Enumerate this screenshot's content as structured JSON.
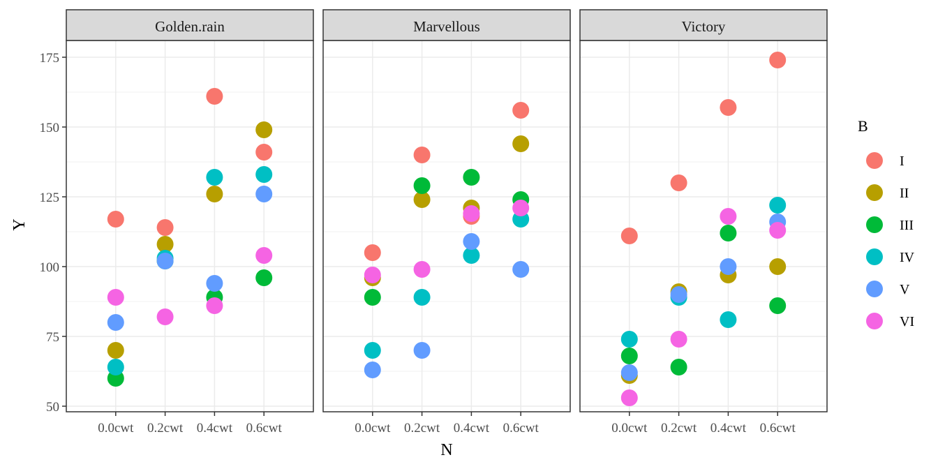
{
  "chart_data": {
    "type": "scatter",
    "xlabel": "N",
    "ylabel": "Y",
    "categories": [
      "0.0cwt",
      "0.2cwt",
      "0.4cwt",
      "0.6cwt"
    ],
    "ylim": [
      48,
      181
    ],
    "yticks": [
      50,
      75,
      100,
      125,
      150,
      175
    ],
    "grid": true,
    "facets": [
      "Golden.rain",
      "Marvellous",
      "Victory"
    ],
    "legend": {
      "title": "B",
      "position": "right",
      "entries": [
        "I",
        "II",
        "III",
        "IV",
        "V",
        "VI"
      ],
      "colors": [
        "#F8766D",
        "#B79F00",
        "#00BA38",
        "#00BFC4",
        "#619CFF",
        "#F564E3"
      ]
    },
    "panels": [
      {
        "name": "Golden.rain",
        "series": [
          {
            "name": "I",
            "values": [
              117,
              114,
              161,
              141
            ]
          },
          {
            "name": "II",
            "values": [
              70,
              108,
              126,
              149
            ]
          },
          {
            "name": "III",
            "values": [
              60,
              102,
              89,
              96
            ]
          },
          {
            "name": "IV",
            "values": [
              64,
              103,
              132,
              133
            ]
          },
          {
            "name": "V",
            "values": [
              80,
              102,
              94,
              126
            ]
          },
          {
            "name": "VI",
            "values": [
              89,
              82,
              86,
              104
            ]
          }
        ]
      },
      {
        "name": "Marvellous",
        "series": [
          {
            "name": "I",
            "values": [
              105,
              140,
              118,
              156
            ]
          },
          {
            "name": "II",
            "values": [
              96,
              124,
              121,
              144
            ]
          },
          {
            "name": "III",
            "values": [
              89,
              129,
              132,
              124
            ]
          },
          {
            "name": "IV",
            "values": [
              70,
              89,
              104,
              117
            ]
          },
          {
            "name": "V",
            "values": [
              63,
              70,
              109,
              99
            ]
          },
          {
            "name": "VI",
            "values": [
              97,
              99,
              119,
              121
            ]
          }
        ]
      },
      {
        "name": "Victory",
        "series": [
          {
            "name": "I",
            "values": [
              111,
              130,
              157,
              174
            ]
          },
          {
            "name": "II",
            "values": [
              61,
              91,
              97,
              100
            ]
          },
          {
            "name": "III",
            "values": [
              68,
              64,
              112,
              86
            ]
          },
          {
            "name": "IV",
            "values": [
              74,
              89,
              81,
              122
            ]
          },
          {
            "name": "V",
            "values": [
              62,
              90,
              100,
              116
            ]
          },
          {
            "name": "VI",
            "values": [
              53,
              74,
              118,
              113
            ]
          }
        ]
      }
    ]
  }
}
